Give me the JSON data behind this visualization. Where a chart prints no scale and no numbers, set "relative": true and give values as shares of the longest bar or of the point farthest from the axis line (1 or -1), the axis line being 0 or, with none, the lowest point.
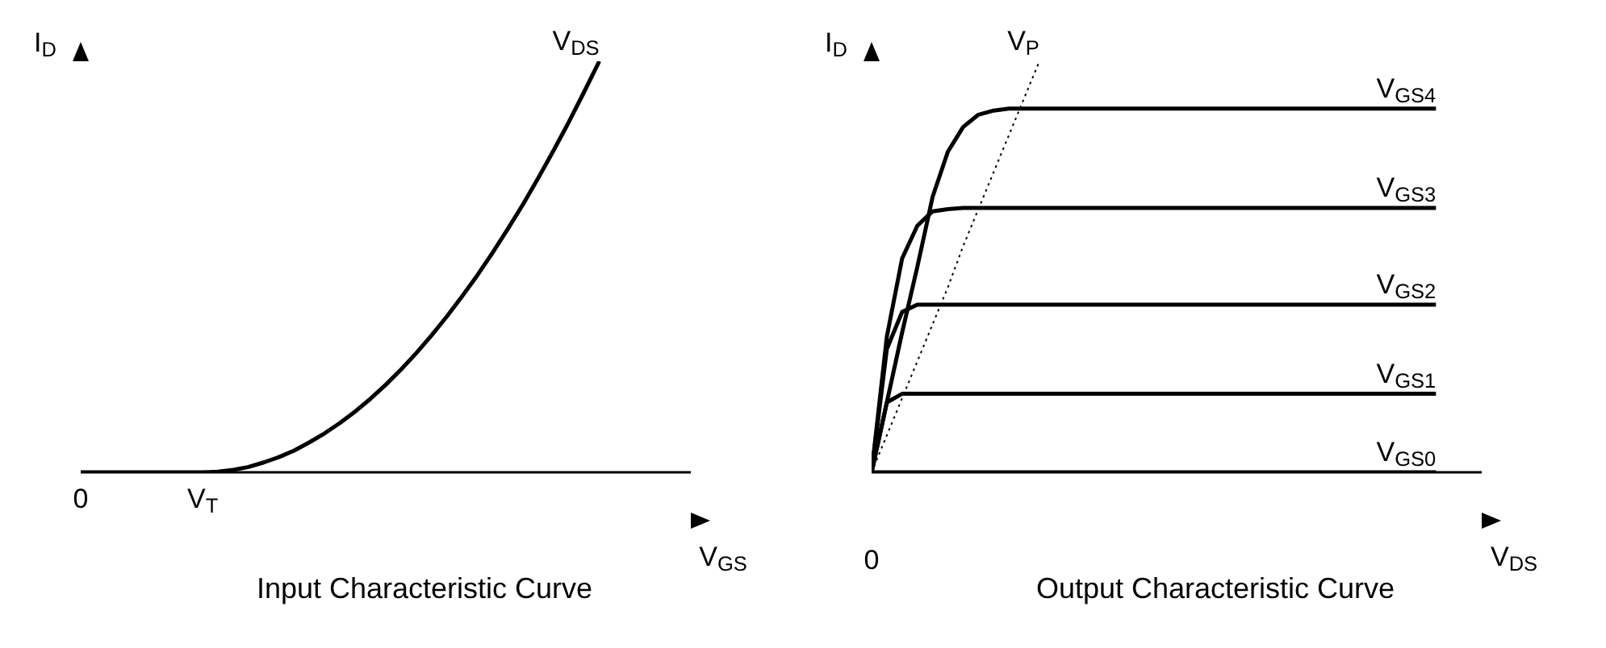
{
  "chart_data": [
    {
      "type": "line",
      "title": "Input Characteristic Curve",
      "xlabel": "V$_{GS}$",
      "ylabel": "I$_{D}$",
      "relative": true,
      "marker": "none",
      "categories": [
        "0",
        null,
        null,
        null,
        null,
        null,
        null,
        null,
        "V$_{T}$",
        null,
        null,
        null,
        null,
        null,
        null,
        null,
        null,
        null,
        null,
        null,
        null,
        null,
        null,
        null,
        null,
        null,
        null,
        null,
        null,
        null,
        null,
        null,
        null,
        null,
        null,
        null,
        null,
        null,
        null,
        null,
        null
      ],
      "series": [
        {
          "name": "V$_{DS}$",
          "color": "#000000",
          "values": [
            0,
            0,
            0,
            0,
            0,
            0,
            0,
            0,
            0,
            0.0015,
            0.006,
            0.013,
            0.024,
            0.037,
            0.053,
            0.073,
            0.095,
            0.12,
            0.148,
            0.179,
            0.213,
            0.25,
            0.29,
            0.333,
            0.379,
            0.428,
            0.479,
            0.534,
            0.592,
            0.652,
            0.716,
            0.783,
            0.852,
            0.925,
            1,
            null,
            null,
            null,
            null,
            null,
            null
          ]
        }
      ]
    },
    {
      "type": "line",
      "title": "Output Characteristic Curve",
      "xlabel": "V$_{DS}$",
      "ylabel": "I$_{D}$",
      "relative": true,
      "marker": "none",
      "annotations": [
        "0"
      ],
      "categories": [
        null,
        null,
        null,
        null,
        null,
        null,
        null,
        null,
        null,
        null,
        null,
        null,
        null,
        null,
        null,
        null,
        null,
        null,
        null,
        null,
        null,
        null,
        null,
        null,
        null,
        null,
        null,
        null,
        null,
        null,
        null,
        null,
        null,
        null,
        null,
        null,
        null,
        null,
        null,
        null,
        null
      ],
      "series": [
        {
          "name": "V$_{P}$",
          "color": "#000000",
          "line_style": "dotted",
          "values": [
            0,
            0.09,
            0.18,
            0.27,
            0.36,
            0.45,
            0.55,
            0.64,
            0.73,
            0.82,
            0.91,
            1,
            null,
            null,
            null,
            null,
            null,
            null,
            null,
            null,
            null,
            null,
            null,
            null,
            null,
            null,
            null,
            null,
            null,
            null,
            null,
            null,
            null,
            null,
            null,
            null,
            null,
            null,
            null,
            null,
            null
          ]
        },
        {
          "name": "V$_{GS4}$",
          "color": "#000000",
          "values": [
            0,
            0.17,
            0.34,
            0.5,
            0.67,
            0.78,
            0.84,
            0.87,
            0.88,
            0.885,
            0.885,
            0.885,
            0.885,
            0.885,
            0.885,
            0.885,
            0.885,
            0.885,
            0.885,
            0.885,
            0.885,
            0.885,
            0.885,
            0.885,
            0.885,
            0.885,
            0.885,
            0.885,
            0.885,
            0.885,
            0.885,
            0.885,
            0.885,
            0.885,
            0.885,
            0.885,
            0.885,
            0.885,
            null,
            null,
            null
          ]
        },
        {
          "name": "V$_{GS3}$",
          "color": "#000000",
          "values": [
            0,
            0.33,
            0.52,
            0.6,
            0.635,
            0.64,
            0.643,
            0.643,
            0.643,
            0.643,
            0.643,
            0.643,
            0.643,
            0.643,
            0.643,
            0.643,
            0.643,
            0.643,
            0.643,
            0.643,
            0.643,
            0.643,
            0.643,
            0.643,
            0.643,
            0.643,
            0.643,
            0.643,
            0.643,
            0.643,
            0.643,
            0.643,
            0.643,
            0.643,
            0.643,
            0.643,
            0.643,
            0.643,
            null,
            null,
            null
          ]
        },
        {
          "name": "V$_{GS2}$",
          "color": "#000000",
          "values": [
            0,
            0.3,
            0.39,
            0.408,
            0.408,
            0.408,
            0.408,
            0.408,
            0.408,
            0.408,
            0.408,
            0.408,
            0.408,
            0.408,
            0.408,
            0.408,
            0.408,
            0.408,
            0.408,
            0.408,
            0.408,
            0.408,
            0.408,
            0.408,
            0.408,
            0.408,
            0.408,
            0.408,
            0.408,
            0.408,
            0.408,
            0.408,
            0.408,
            0.408,
            0.408,
            0.408,
            0.408,
            0.408,
            null,
            null,
            null
          ]
        },
        {
          "name": "V$_{GS1}$",
          "color": "#000000",
          "values": [
            0,
            0.17,
            0.191,
            0.191,
            0.191,
            0.191,
            0.191,
            0.191,
            0.191,
            0.191,
            0.191,
            0.191,
            0.191,
            0.191,
            0.191,
            0.191,
            0.191,
            0.191,
            0.191,
            0.191,
            0.191,
            0.191,
            0.191,
            0.191,
            0.191,
            0.191,
            0.191,
            0.191,
            0.191,
            0.191,
            0.191,
            0.191,
            0.191,
            0.191,
            0.191,
            0.191,
            0.191,
            0.191,
            null,
            null,
            null
          ]
        },
        {
          "name": "V$_{GS0}$",
          "color": "#000000",
          "values": [
            0,
            0,
            0,
            0,
            0,
            0,
            0,
            0,
            0,
            0,
            0,
            0,
            0,
            0,
            0,
            0,
            0,
            0,
            0,
            0,
            0,
            0,
            0,
            0,
            0,
            0,
            0,
            0,
            0,
            0,
            0,
            0,
            0,
            0,
            0,
            0,
            0,
            0,
            null,
            null,
            null
          ]
        }
      ]
    }
  ]
}
